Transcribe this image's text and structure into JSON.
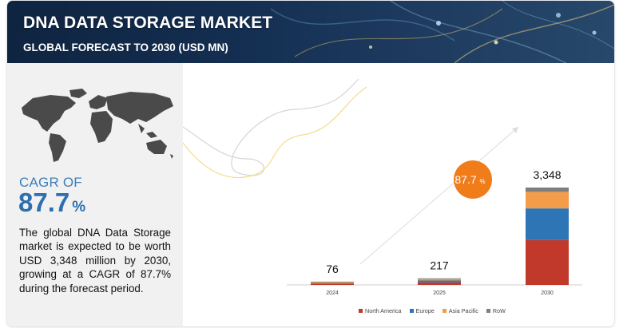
{
  "header": {
    "title": "DNA DATA STORAGE MARKET",
    "subtitle": "GLOBAL FORECAST TO 2030 (USD MN)"
  },
  "highlight": {
    "cagr_label": "CAGR OF",
    "cagr_value": "87.7",
    "cagr_unit": "%",
    "badge_value": "87.7",
    "badge_unit": "%",
    "description": "The global DNA Data Storage market is expected to be worth USD 3,348 million by 2030, growing at a CAGR of 87.7% during the forecast period."
  },
  "icons": {
    "map": "world-map-icon"
  },
  "colors": {
    "north_america": "#c0392b",
    "europe": "#2e75b6",
    "asia_pacific": "#f39c4a",
    "row": "#7f7f7f",
    "badge": "#f07c1a",
    "accent_blue": "#2e6fae"
  },
  "chart_data": {
    "type": "bar",
    "stacked": true,
    "categories": [
      "2024",
      "2025",
      "2030"
    ],
    "totals": [
      "76",
      "217",
      "3,348"
    ],
    "total_values": [
      76,
      217,
      3348
    ],
    "series": [
      {
        "name": "North America",
        "color": "#c0392b",
        "values": [
          30,
          88,
          1540
        ]
      },
      {
        "name": "Europe",
        "color": "#2e75b6",
        "values": [
          22,
          63,
          1090
        ]
      },
      {
        "name": "Asia Pacific",
        "color": "#f39c4a",
        "values": [
          17,
          48,
          570
        ]
      },
      {
        "name": "RoW",
        "color": "#7f7f7f",
        "values": [
          7,
          18,
          148
        ]
      }
    ],
    "legend_position": "bottom-center",
    "grid": false,
    "ylim": [
      0,
      3348
    ]
  }
}
